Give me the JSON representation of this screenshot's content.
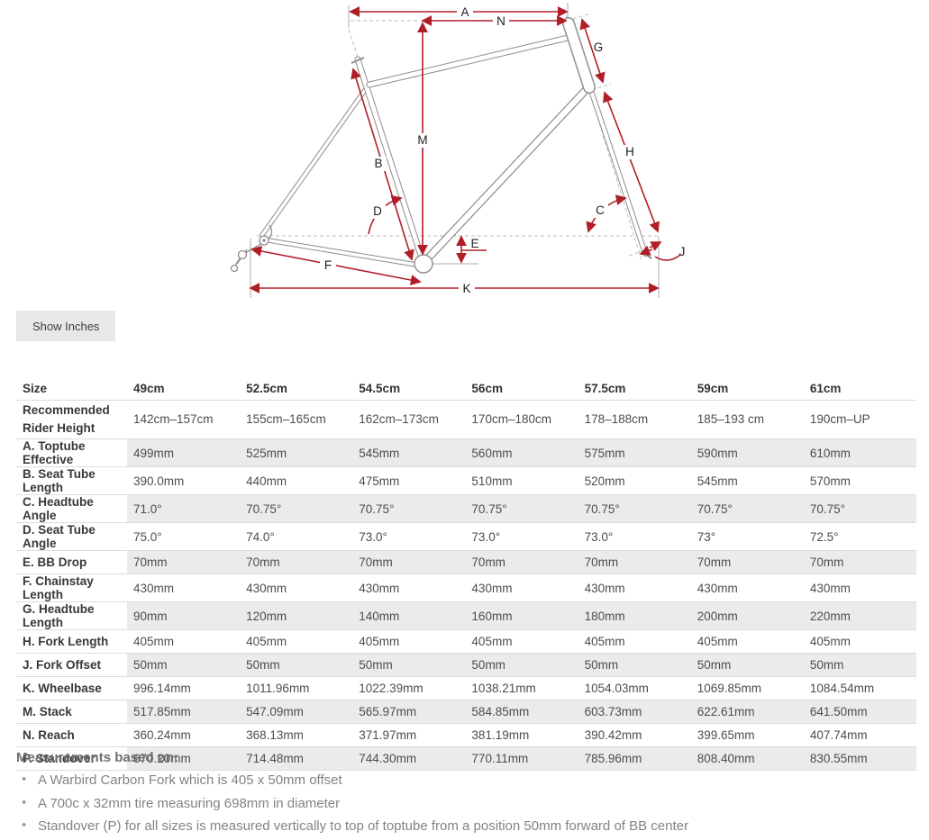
{
  "diagram": {
    "labels": {
      "A": "A",
      "B": "B",
      "C": "C",
      "D": "D",
      "E": "E",
      "F": "F",
      "G": "G",
      "H": "H",
      "J": "J",
      "K": "K",
      "M": "M",
      "N": "N"
    }
  },
  "controls": {
    "show_inches_label": "Show Inches"
  },
  "table": {
    "columns": [
      "Size",
      "49cm",
      "52.5cm",
      "54.5cm",
      "56cm",
      "57.5cm",
      "59cm",
      "61cm"
    ],
    "rows": [
      {
        "label": "Recommended Rider Height",
        "values": [
          "142cm–157cm",
          "155cm–165cm",
          "162cm–173cm",
          "170cm–180cm",
          "178–188cm",
          "185–193 cm",
          "190cm–UP"
        ]
      },
      {
        "label": "A. Toptube Effective",
        "values": [
          "499mm",
          "525mm",
          "545mm",
          "560mm",
          "575mm",
          "590mm",
          "610mm"
        ]
      },
      {
        "label": "B. Seat Tube Length",
        "values": [
          "390.0mm",
          "440mm",
          "475mm",
          "510mm",
          "520mm",
          "545mm",
          "570mm"
        ]
      },
      {
        "label": "C. Headtube Angle",
        "values": [
          "71.0°",
          "70.75°",
          "70.75°",
          "70.75°",
          "70.75°",
          "70.75°",
          "70.75°"
        ]
      },
      {
        "label": "D. Seat Tube Angle",
        "values": [
          "75.0°",
          "74.0°",
          "73.0°",
          "73.0°",
          "73.0°",
          "73°",
          "72.5°"
        ]
      },
      {
        "label": "E. BB Drop",
        "values": [
          "70mm",
          "70mm",
          "70mm",
          "70mm",
          "70mm",
          "70mm",
          "70mm"
        ]
      },
      {
        "label": "F. Chainstay Length",
        "values": [
          "430mm",
          "430mm",
          "430mm",
          "430mm",
          "430mm",
          "430mm",
          "430mm"
        ]
      },
      {
        "label": "G. Headtube Length",
        "values": [
          "90mm",
          "120mm",
          "140mm",
          "160mm",
          "180mm",
          "200mm",
          "220mm"
        ]
      },
      {
        "label": "H. Fork Length",
        "values": [
          "405mm",
          "405mm",
          "405mm",
          "405mm",
          "405mm",
          "405mm",
          "405mm"
        ]
      },
      {
        "label": "J. Fork Offset",
        "values": [
          "50mm",
          "50mm",
          "50mm",
          "50mm",
          "50mm",
          "50mm",
          "50mm"
        ]
      },
      {
        "label": "K. Wheelbase",
        "values": [
          "996.14mm",
          "1011.96mm",
          "1022.39mm",
          "1038.21mm",
          "1054.03mm",
          "1069.85mm",
          "1084.54mm"
        ]
      },
      {
        "label": "M. Stack",
        "values": [
          "517.85mm",
          "547.09mm",
          "565.97mm",
          "584.85mm",
          "603.73mm",
          "622.61mm",
          "641.50mm"
        ]
      },
      {
        "label": "N. Reach",
        "values": [
          "360.24mm",
          "368.13mm",
          "371.97mm",
          "381.19mm",
          "390.42mm",
          "399.65mm",
          "407.74mm"
        ]
      },
      {
        "label": "P. Standover",
        "values": [
          "670.20mm",
          "714.48mm",
          "744.30mm",
          "770.11mm",
          "785.96mm",
          "808.40mm",
          "830.55mm"
        ]
      }
    ]
  },
  "notes": {
    "heading": "Measurements based on:",
    "items": [
      "A Warbird Carbon Fork which is 405 x 50mm offset",
      "A 700c x 32mm tire measuring 698mm in diameter",
      "Standover (P) for all sizes is measured vertically to top of toptube from a position 50mm forward of BB center"
    ]
  },
  "colors": {
    "dimension_red": "#b01f28",
    "frame_gray": "#8e8e8e",
    "row_shade": "#ebebeb"
  }
}
